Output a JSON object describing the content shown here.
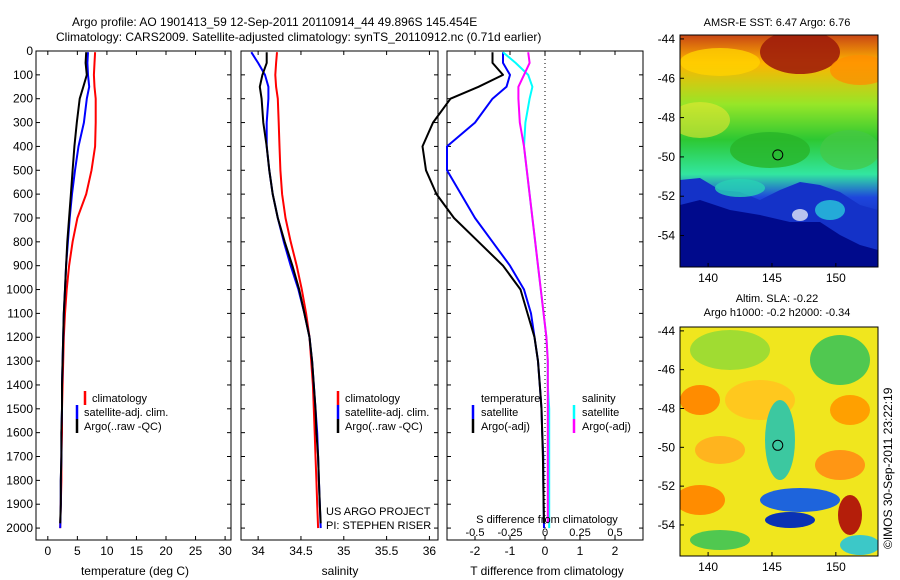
{
  "header": {
    "line1": "Argo profile: AO 1901413_59 12-Sep-2011 20110914_44 49.896S 145.454E",
    "line2": "Climatology: CARS2009. Satellite-adjusted climatology: synTS_20110912.nc (0.71d earlier)"
  },
  "credit": "©IMOS 30-Sep-2011 23:22:19",
  "project": {
    "line1": "US ARGO PROJECT",
    "line2": "PI: STEPHEN RISER"
  },
  "colors": {
    "climatology": "#ff0000",
    "satellite": "#0000ff",
    "argo": "#000000",
    "sat_salinity": "#00ffff",
    "argo_adj_salinity": "#ff00ff"
  },
  "chart_data": [
    {
      "type": "line",
      "name": "temperature",
      "xlabel": "temperature (deg C)",
      "ylim": [
        2050,
        0
      ],
      "xlim": [
        -2,
        31
      ],
      "xticks": [
        0,
        5,
        10,
        15,
        20,
        25,
        30
      ],
      "yticks": [
        0,
        100,
        200,
        300,
        400,
        500,
        600,
        700,
        800,
        900,
        1000,
        1100,
        1200,
        1300,
        1400,
        1500,
        1600,
        1700,
        1800,
        1900,
        2000
      ],
      "legend": [
        "climatology",
        "satellite-adj. clim.",
        "Argo(..raw -QC)"
      ],
      "series": [
        {
          "name": "climatology",
          "color": "#ff0000",
          "x": [
            8.0,
            7.9,
            7.8,
            7.9,
            8.1,
            8.1,
            8.0,
            7.4,
            6.5,
            5.0,
            4.2,
            3.6,
            3.2,
            2.9,
            2.7,
            2.6,
            2.5,
            2.4,
            2.4,
            2.3,
            2.3,
            2.2,
            2.1
          ],
          "depth": [
            5,
            50,
            100,
            150,
            200,
            300,
            400,
            500,
            600,
            700,
            800,
            900,
            1000,
            1100,
            1200,
            1300,
            1400,
            1500,
            1600,
            1700,
            1800,
            1900,
            2000
          ]
        },
        {
          "name": "satellite-adj. clim.",
          "color": "#0000ff",
          "x": [
            6.8,
            6.7,
            6.8,
            7.0,
            6.6,
            6.1,
            5.2,
            4.6,
            4.1,
            3.7,
            3.4,
            3.1,
            2.9,
            2.7,
            2.6,
            2.5,
            2.4,
            2.4,
            2.3,
            2.3,
            2.2,
            2.2,
            2.1
          ],
          "depth": [
            5,
            50,
            100,
            150,
            200,
            300,
            400,
            500,
            600,
            700,
            800,
            900,
            1000,
            1100,
            1200,
            1300,
            1400,
            1500,
            1600,
            1700,
            1800,
            1900,
            2000
          ]
        },
        {
          "name": "Argo(..raw -QC)",
          "color": "#000000",
          "x": [
            6.5,
            6.4,
            6.6,
            6.0,
            5.4,
            4.9,
            4.5,
            4.2,
            3.9,
            3.6,
            3.3,
            3.1,
            2.9,
            2.7,
            2.6,
            2.5,
            2.4,
            2.4,
            2.3,
            2.3,
            2.2,
            2.2,
            2.1
          ],
          "depth": [
            5,
            50,
            100,
            150,
            200,
            300,
            400,
            500,
            600,
            700,
            800,
            900,
            1000,
            1100,
            1200,
            1300,
            1400,
            1500,
            1600,
            1700,
            1800,
            1900,
            1980
          ]
        }
      ]
    },
    {
      "type": "line",
      "name": "salinity",
      "xlabel": "salinity",
      "ylim": [
        2050,
        0
      ],
      "xlim": [
        33.8,
        36.1
      ],
      "xticks": [
        34,
        34.5,
        35,
        35.5,
        36
      ],
      "legend": [
        "climatology",
        "satellite-adj. clim.",
        "Argo(..raw -QC)"
      ],
      "series": [
        {
          "name": "climatology",
          "color": "#ff0000",
          "x": [
            34.22,
            34.21,
            34.2,
            34.21,
            34.23,
            34.24,
            34.25,
            34.26,
            34.28,
            34.32,
            34.38,
            34.45,
            34.51,
            34.56,
            34.6,
            34.62,
            34.64,
            34.65,
            34.66,
            34.67,
            34.68,
            34.69,
            34.7
          ],
          "depth": [
            5,
            50,
            100,
            150,
            200,
            300,
            400,
            500,
            600,
            700,
            800,
            900,
            1000,
            1100,
            1200,
            1300,
            1400,
            1500,
            1600,
            1700,
            1800,
            1900,
            2000
          ]
        },
        {
          "name": "satellite-adj. clim.",
          "color": "#0000ff",
          "x": [
            33.92,
            34.0,
            34.08,
            34.12,
            34.12,
            34.1,
            34.1,
            34.13,
            34.17,
            34.23,
            34.3,
            34.38,
            34.47,
            34.54,
            34.6,
            34.63,
            34.65,
            34.67,
            34.69,
            34.7,
            34.71,
            34.72,
            34.73
          ],
          "depth": [
            5,
            50,
            100,
            150,
            200,
            300,
            400,
            500,
            600,
            700,
            800,
            900,
            1000,
            1100,
            1200,
            1300,
            1400,
            1500,
            1600,
            1700,
            1800,
            1900,
            2000
          ]
        },
        {
          "name": "Argo(..raw -QC)",
          "color": "#000000",
          "x": [
            34.1,
            34.1,
            34.05,
            34.02,
            34.04,
            34.06,
            34.1,
            34.13,
            34.17,
            34.23,
            34.31,
            34.4,
            34.48,
            34.54,
            34.6,
            34.63,
            34.65,
            34.67,
            34.68,
            34.7,
            34.71,
            34.72,
            34.73
          ],
          "depth": [
            5,
            50,
            100,
            150,
            200,
            300,
            400,
            500,
            600,
            700,
            800,
            900,
            1000,
            1100,
            1200,
            1300,
            1400,
            1500,
            1600,
            1700,
            1800,
            1900,
            1980
          ]
        }
      ]
    },
    {
      "type": "line",
      "name": "difference",
      "xlabel": "T difference from climatology",
      "xlabel_top": "S difference from climatology",
      "ylim": [
        2050,
        0
      ],
      "xlim": [
        -2.8,
        2.8
      ],
      "xticks": [
        -2,
        -1,
        0,
        1,
        2
      ],
      "xticks_top": [
        -0.5,
        -0.25,
        0,
        0.25,
        0.5
      ],
      "legend_left_title": "temperature",
      "legend_right_title": "salinity",
      "legend": [
        "satellite",
        "Argo(-adj)",
        "satellite",
        "Argo(-adj)"
      ],
      "series": [
        {
          "name": "satellite",
          "color": "#0000ff",
          "x": [
            -1.2,
            -1.2,
            -1.0,
            -1.1,
            -1.5,
            -2.0,
            -2.8,
            -2.8,
            -2.4,
            -2.0,
            -1.5,
            -1.0,
            -0.6,
            -0.4,
            -0.3,
            -0.2,
            -0.15,
            -0.1,
            -0.08,
            -0.05,
            -0.05,
            -0.04,
            -0.03
          ],
          "depth": [
            5,
            50,
            100,
            150,
            200,
            300,
            400,
            500,
            600,
            700,
            800,
            900,
            1000,
            1100,
            1200,
            1300,
            1400,
            1500,
            1600,
            1700,
            1800,
            1900,
            2000
          ]
        },
        {
          "name": "Argo(-adj)",
          "color": "#000000",
          "x": [
            -1.5,
            -1.5,
            -1.2,
            -1.9,
            -2.7,
            -3.2,
            -3.5,
            -3.4,
            -3.1,
            -2.6,
            -1.9,
            -1.2,
            -0.7,
            -0.5,
            -0.3,
            -0.2,
            -0.15,
            -0.1,
            -0.08,
            -0.06,
            -0.05,
            -0.04,
            -0.03
          ],
          "depth": [
            5,
            50,
            100,
            150,
            200,
            300,
            400,
            500,
            600,
            700,
            800,
            900,
            1000,
            1100,
            1200,
            1300,
            1400,
            1500,
            1600,
            1700,
            1800,
            1900,
            1980
          ]
        },
        {
          "name": "satellite",
          "color": "#00ffff",
          "x": [
            -0.3,
            -0.21,
            -0.12,
            -0.09,
            -0.11,
            -0.14,
            -0.15,
            -0.13,
            -0.11,
            -0.09,
            -0.07,
            -0.05,
            -0.03,
            -0.01,
            0.01,
            0.02,
            0.02,
            0.03,
            0.03,
            0.03,
            0.03,
            0.03,
            0.03
          ],
          "depth": [
            5,
            50,
            100,
            150,
            200,
            300,
            400,
            500,
            600,
            700,
            800,
            900,
            1000,
            1100,
            1200,
            1300,
            1400,
            1500,
            1600,
            1700,
            1800,
            1900,
            2000
          ]
        },
        {
          "name": "Argo(-adj)",
          "color": "#ff00ff",
          "x": [
            -0.12,
            -0.11,
            -0.15,
            -0.19,
            -0.19,
            -0.18,
            -0.15,
            -0.13,
            -0.11,
            -0.09,
            -0.07,
            -0.05,
            -0.03,
            -0.01,
            0.01,
            0.02,
            0.02,
            0.02,
            0.02,
            0.02,
            0.02,
            0.02,
            0.02
          ],
          "depth": [
            5,
            50,
            100,
            150,
            200,
            300,
            400,
            500,
            600,
            700,
            800,
            900,
            1000,
            1100,
            1200,
            1300,
            1400,
            1500,
            1600,
            1700,
            1800,
            1900,
            1980
          ]
        }
      ]
    },
    {
      "type": "heatmap",
      "name": "sst-map",
      "title": "AMSR-E SST: 6.47 Argo: 6.76",
      "xlim": [
        137.8,
        153.3
      ],
      "ylim": [
        -55.6,
        -43.8
      ],
      "xticks": [
        140,
        145,
        150
      ],
      "yticks": [
        -44,
        -46,
        -48,
        -50,
        -52,
        -54
      ],
      "marker": {
        "lon": 145.454,
        "lat": -49.896
      }
    },
    {
      "type": "heatmap",
      "name": "sla-map",
      "title_line1": "Altim. SLA: -0.22",
      "title_line2": "Argo h1000: -0.2 h2000: -0.34",
      "xlim": [
        137.8,
        153.3
      ],
      "ylim": [
        -55.6,
        -43.8
      ],
      "xticks": [
        140,
        145,
        150
      ],
      "yticks": [
        -44,
        -46,
        -48,
        -50,
        -52,
        -54
      ],
      "marker": {
        "lon": 145.454,
        "lat": -49.896
      }
    }
  ]
}
